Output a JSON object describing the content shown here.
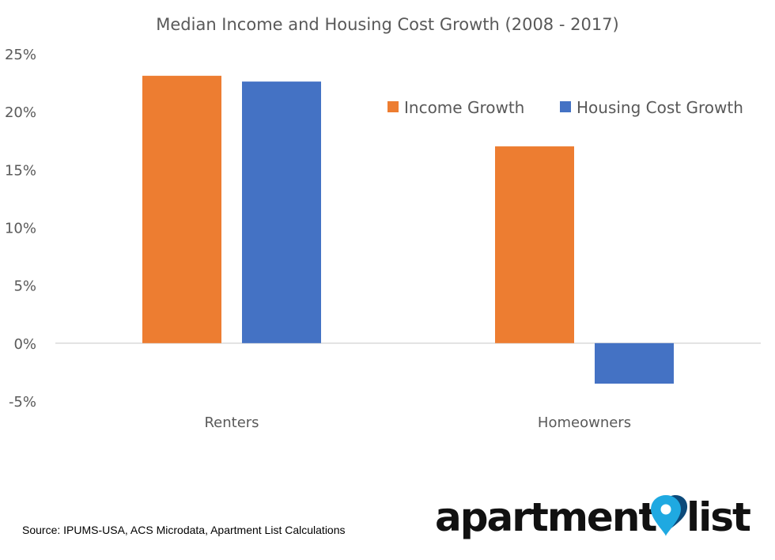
{
  "chart_data": {
    "type": "bar",
    "title": "Median Income and Housing Cost Growth (2008 - 2017)",
    "categories": [
      "Renters",
      "Homeowners"
    ],
    "series": [
      {
        "name": "Income Growth",
        "values": [
          23.1,
          17.0
        ],
        "color": "#ED7D31"
      },
      {
        "name": "Housing Cost Growth",
        "values": [
          22.6,
          -3.5
        ],
        "color": "#4472C4"
      }
    ],
    "ylim": [
      -5,
      25
    ],
    "yticks": [
      -5,
      0,
      5,
      10,
      15,
      20,
      25
    ],
    "ytick_labels": [
      "-5%",
      "0%",
      "5%",
      "10%",
      "15%",
      "20%",
      "25%"
    ],
    "xlabel": "",
    "ylabel": "",
    "legend": "top-right",
    "grid": false
  },
  "source_note": "Source: IPUMS-USA, ACS Microdata, Apartment List Calculations",
  "brand": {
    "word1": "apartment",
    "word2": "list",
    "pin_colors": [
      "#1FA9E1",
      "#0C4A7A"
    ]
  }
}
